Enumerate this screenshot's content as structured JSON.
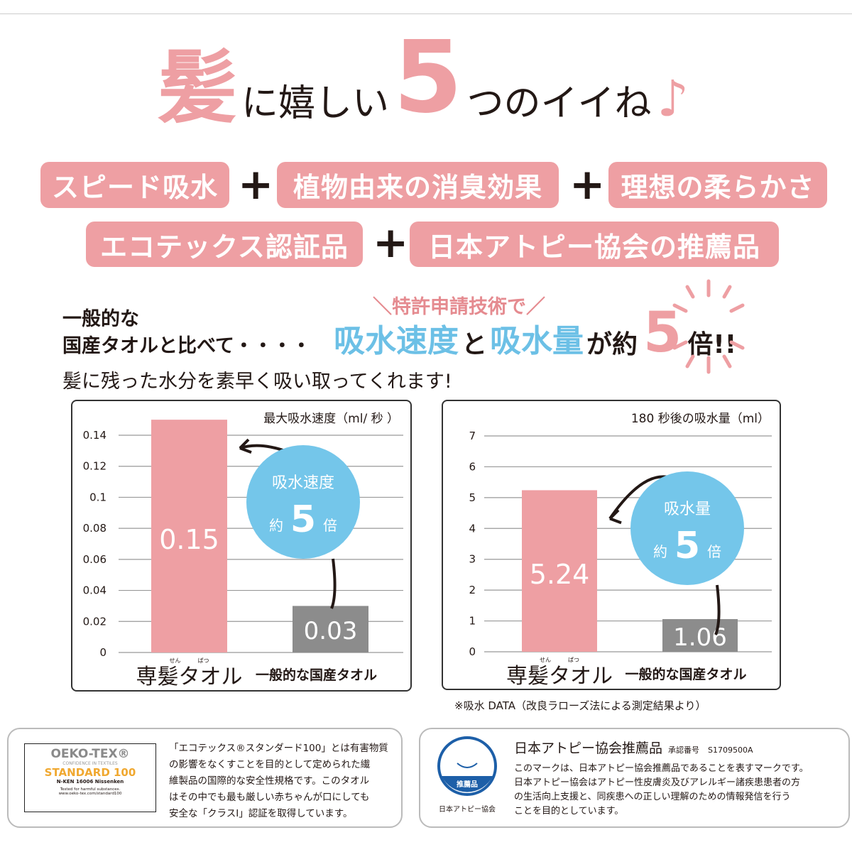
{
  "headline": {
    "part1": "髪",
    "part2": "に嬉しい",
    "part3": "5",
    "part4": "つのイイね",
    "part5": "♪"
  },
  "features": [
    "スピード吸水",
    "植物由来の消臭効果",
    "理想の柔らかさ",
    "エコテックス認証品",
    "日本アトピー協会の推薦品"
  ],
  "plus": "+",
  "comparison": {
    "line1": "一般的な",
    "line2": "国産タオルと比べて・・・・",
    "patent": "＼特許申請技術で／",
    "speed": "吸水速度",
    "to": "と",
    "amount": "吸水量",
    "ga_yaku": "が約",
    "five": "5",
    "bai": "倍!!",
    "sub": "髪に残った水分を素早く吸い取ってくれます!"
  },
  "colors": {
    "pink": "#ee9fa3",
    "blue": "#6cc0e6",
    "gray": "#8c8c8c"
  },
  "chart_data": [
    {
      "type": "bar",
      "title": "最大吸水速度（ml/ 秒 ）",
      "categories": [
        "専髪タオル",
        "一般的な国産タオル"
      ],
      "furigana": [
        "せん",
        "ぱつ"
      ],
      "values": [
        0.15,
        0.03
      ],
      "value_labels": [
        "0.15",
        "0.03"
      ],
      "yticks": [
        "0",
        "0.02",
        "0.04",
        "0.06",
        "0.08",
        "0.1",
        "0.12",
        "0.14"
      ],
      "ylim": [
        0,
        0.14
      ],
      "grid": true,
      "callout": {
        "line1": "吸水速度",
        "prefix": "約",
        "num": "5",
        "suffix": "倍"
      }
    },
    {
      "type": "bar",
      "title": "180 秒後の吸水量（ml）",
      "categories": [
        "専髪タオル",
        "一般的な国産タオル"
      ],
      "furigana": [
        "せん",
        "ぱつ"
      ],
      "values": [
        5.24,
        1.06
      ],
      "value_labels": [
        "5.24",
        "1.06"
      ],
      "yticks": [
        "0",
        "1",
        "2",
        "3",
        "4",
        "5",
        "6",
        "7"
      ],
      "ylim": [
        0,
        7
      ],
      "grid": true,
      "callout": {
        "line1": "吸水量",
        "prefix": "約",
        "num": "5",
        "suffix": "倍"
      }
    }
  ],
  "note": "※吸水 DATA（改良ラローズ法による測定結果より）",
  "oeko": {
    "logo_title": "OEKO-TEX®",
    "logo_sub": "CONFIDENCE IN TEXTILES",
    "logo_std": "STANDARD 100",
    "logo_code": "N-KEN 16006 Nissenken",
    "logo_tested": "Tested for harmful substances.",
    "logo_url": "www.oeko-tex.com/standard100",
    "lines": [
      "「エコテックス®スタンダード100」とは有害物質",
      "の影響をなくすことを目的として定められた繊",
      "維製品の国際的な安全性規格です。このタオル",
      "はその中でも最も厳しい赤ちゃんが口にしても",
      "安全な「クラスI」認証を取得しています。"
    ]
  },
  "atopy": {
    "logo_ring": "Japan Atopic Dermatitis Patients Association",
    "logo_badge": "推薦品",
    "logo_caption": "日本アトピー協会",
    "title": "日本アトピー協会推薦品",
    "approval_label": "承認番号",
    "approval_no": "S1709500A",
    "lines": [
      "このマークは、日本アトピー協会推薦品であることを表すマークです。",
      "日本アトピー協会はアトピー性皮膚炎及びアレルギー諸疾患患者の方",
      "の生活向上支援と、同疾患への正しい理解のための情報発信を行う",
      "ことを目的としています。"
    ]
  }
}
